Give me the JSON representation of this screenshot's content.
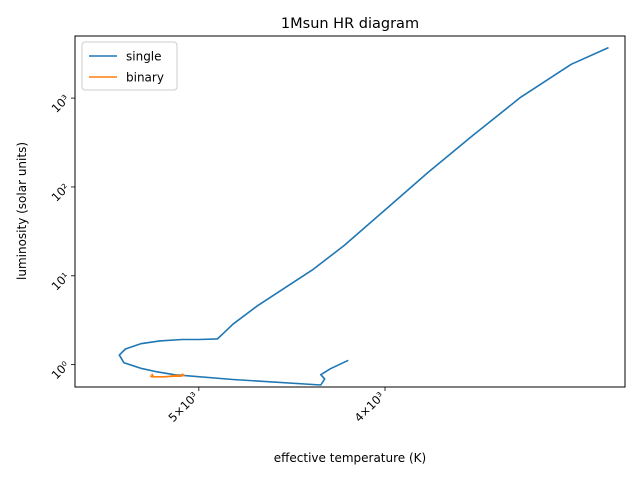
{
  "chart_data": {
    "type": "line",
    "title": "1Msun HR diagram",
    "xlabel": "effective temperature (K)",
    "ylabel": "luminosity (solar units)",
    "x_scale": "log",
    "y_scale": "log",
    "x_inverted": true,
    "xlim": [
      5800,
      3000
    ],
    "ylim": [
      0.56,
      5000
    ],
    "x_ticks": [
      {
        "value": 5000,
        "label": "5×10³"
      },
      {
        "value": 4000,
        "label": "4×10³"
      }
    ],
    "y_ticks": [
      {
        "value": 1,
        "label": "10⁰"
      },
      {
        "value": 10,
        "label": "10¹"
      },
      {
        "value": 100,
        "label": "10²"
      },
      {
        "value": 1000,
        "label": "10³"
      }
    ],
    "grid": false,
    "legend": {
      "location": "top-left"
    },
    "series": [
      {
        "name": "single",
        "color": "#1f77b4",
        "points": [
          [
            4180,
            1.12
          ],
          [
            4270,
            0.9
          ],
          [
            4320,
            0.77
          ],
          [
            4300,
            0.69
          ],
          [
            4320,
            0.59
          ],
          [
            4800,
            0.68
          ],
          [
            5150,
            0.77
          ],
          [
            5270,
            0.84
          ],
          [
            5360,
            0.91
          ],
          [
            5470,
            1.05
          ],
          [
            5500,
            1.28
          ],
          [
            5460,
            1.5
          ],
          [
            5360,
            1.72
          ],
          [
            5240,
            1.85
          ],
          [
            5100,
            1.92
          ],
          [
            5000,
            1.92
          ],
          [
            4890,
            1.95
          ],
          [
            4860,
            2.2
          ],
          [
            4800,
            2.85
          ],
          [
            4660,
            4.6
          ],
          [
            4490,
            7.8
          ],
          [
            4360,
            11.8
          ],
          [
            4200,
            22
          ],
          [
            4000,
            55
          ],
          [
            3800,
            145
          ],
          [
            3600,
            380
          ],
          [
            3400,
            1020
          ],
          [
            3200,
            2400
          ],
          [
            3060,
            3700
          ]
        ]
      },
      {
        "name": "binary",
        "color": "#ff7f0e",
        "points": [
          [
            5290,
            0.79
          ],
          [
            5280,
            0.73
          ],
          [
            5200,
            0.73
          ],
          [
            5130,
            0.76
          ],
          [
            5110,
            0.74
          ],
          [
            5090,
            0.76
          ],
          [
            5100,
            0.78
          ],
          [
            5110,
            0.74
          ],
          [
            5150,
            0.74
          ],
          [
            5220,
            0.73
          ],
          [
            5290,
            0.73
          ],
          [
            5300,
            0.75
          ]
        ]
      }
    ]
  }
}
